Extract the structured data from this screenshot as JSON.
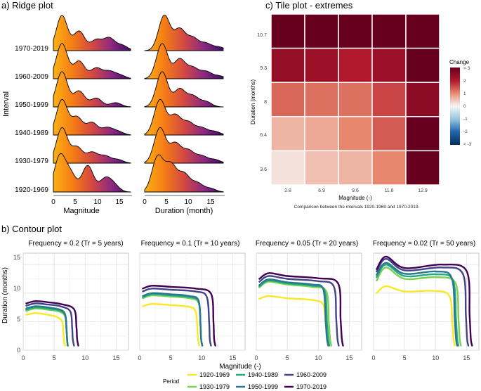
{
  "ridge": {
    "panel_title": "a) Ridge plot",
    "ylabel": "Interval",
    "intervals": [
      "1970-2019",
      "1960-2009",
      "1950-1999",
      "1940-1989",
      "1930-1979",
      "1920-1969"
    ],
    "left": {
      "xlabel": "Magnitude",
      "xticks": [
        "0",
        "5",
        "10",
        "15"
      ]
    },
    "right": {
      "xlabel": "Duration (month)",
      "xticks": [
        "0",
        "5",
        "10",
        "15"
      ]
    }
  },
  "tile": {
    "panel_title": "c) Tile plot - extremes",
    "xlabel": "Magnitude (-)",
    "ylabel": "Duration (months)",
    "xticks": [
      "2.8",
      "6.9",
      "9.6",
      "11.6",
      "12.9"
    ],
    "yticks": [
      "10.7",
      "9.3",
      "8",
      "6.4",
      "3.6"
    ],
    "caption": "Comparison between the intervals 1920-1969 and 1970-2019.",
    "legend_title": "Change",
    "legend_ticks": [
      "> 3",
      "2",
      "1",
      "0",
      "-1",
      "-2",
      "< -3"
    ]
  },
  "contour": {
    "panel_title": "b) Contour plot",
    "xlabel": "Magnitude (-)",
    "ylabel": "Duration (months)",
    "xticks": [
      "0",
      "5",
      "10",
      "15"
    ],
    "yticks": [
      "0",
      "5",
      "10",
      "15"
    ],
    "legend_title": "Period",
    "periods": [
      {
        "label": "1920-1969",
        "color": "#fde725"
      },
      {
        "label": "1930-1979",
        "color": "#7ad151"
      },
      {
        "label": "1940-1989",
        "color": "#22a884"
      },
      {
        "label": "1950-1999",
        "color": "#2a788e"
      },
      {
        "label": "1960-2009",
        "color": "#414487"
      },
      {
        "label": "1970-2019",
        "color": "#440154"
      }
    ]
  },
  "chart_data": [
    {
      "type": "area",
      "title": "a) Ridge plot - Magnitude",
      "xlabel": "Magnitude",
      "ylabel": "Interval",
      "xlim": [
        0,
        18
      ],
      "series": [
        {
          "name": "1920-1969",
          "peaks": [
            [
              1.5,
              1.0
            ],
            [
              4.0,
              0.5
            ],
            [
              8.0,
              0.75
            ],
            [
              12.0,
              0.35
            ],
            [
              14.0,
              0.2
            ]
          ]
        },
        {
          "name": "1930-1979",
          "peaks": [
            [
              2.0,
              1.0
            ],
            [
              5.5,
              0.45
            ],
            [
              9.0,
              0.3
            ],
            [
              12.0,
              0.2
            ],
            [
              15.0,
              0.1
            ]
          ]
        },
        {
          "name": "1940-1989",
          "peaks": [
            [
              2.0,
              1.0
            ],
            [
              5.5,
              0.5
            ],
            [
              9.0,
              0.35
            ],
            [
              12.5,
              0.2
            ],
            [
              15.0,
              0.1
            ]
          ]
        },
        {
          "name": "1950-1999",
          "peaks": [
            [
              2.0,
              1.0
            ],
            [
              6.0,
              0.45
            ],
            [
              10.0,
              0.25
            ],
            [
              14.5,
              0.12
            ]
          ]
        },
        {
          "name": "1960-2009",
          "peaks": [
            [
              2.0,
              1.0
            ],
            [
              6.0,
              0.5
            ],
            [
              10.0,
              0.3
            ],
            [
              13.0,
              0.2
            ],
            [
              15.5,
              0.1
            ]
          ]
        },
        {
          "name": "1970-2019",
          "peaks": [
            [
              2.0,
              1.0
            ],
            [
              6.0,
              0.55
            ],
            [
              10.0,
              0.3
            ],
            [
              13.0,
              0.35
            ],
            [
              16.0,
              0.15
            ]
          ]
        }
      ]
    },
    {
      "type": "area",
      "title": "a) Ridge plot - Duration",
      "xlabel": "Duration (month)",
      "ylabel": "Interval",
      "xlim": [
        0,
        18
      ],
      "series": [
        {
          "name": "1920-1969",
          "peaks": [
            [
              3.0,
              1.0
            ],
            [
              6.0,
              0.75
            ],
            [
              9.0,
              0.5
            ],
            [
              12.0,
              0.25
            ],
            [
              15.0,
              0.1
            ]
          ]
        },
        {
          "name": "1930-1979",
          "peaks": [
            [
              3.5,
              1.0
            ],
            [
              7.0,
              0.55
            ],
            [
              10.0,
              0.35
            ],
            [
              13.0,
              0.2
            ],
            [
              16.0,
              0.1
            ]
          ]
        },
        {
          "name": "1940-1989",
          "peaks": [
            [
              3.5,
              1.0
            ],
            [
              7.0,
              0.55
            ],
            [
              10.0,
              0.35
            ],
            [
              13.0,
              0.2
            ],
            [
              16.0,
              0.1
            ]
          ]
        },
        {
          "name": "1950-1999",
          "peaks": [
            [
              4.0,
              1.0
            ],
            [
              8.0,
              0.5
            ],
            [
              11.0,
              0.3
            ],
            [
              14.0,
              0.15
            ]
          ]
        },
        {
          "name": "1960-2009",
          "peaks": [
            [
              4.0,
              1.0
            ],
            [
              8.0,
              0.55
            ],
            [
              11.0,
              0.3
            ],
            [
              14.0,
              0.2
            ],
            [
              17.0,
              0.08
            ]
          ]
        },
        {
          "name": "1970-2019",
          "peaks": [
            [
              4.5,
              1.0
            ],
            [
              8.0,
              0.6
            ],
            [
              11.0,
              0.35
            ],
            [
              14.0,
              0.2
            ],
            [
              17.0,
              0.1
            ]
          ]
        }
      ]
    },
    {
      "type": "heatmap",
      "title": "c) Tile plot - extremes",
      "xlabel": "Magnitude (-)",
      "ylabel": "Duration (months)",
      "x": [
        "2.8",
        "6.9",
        "9.6",
        "11.6",
        "12.9"
      ],
      "y": [
        "10.7",
        "9.3",
        "8",
        "6.4",
        "3.6"
      ],
      "values": [
        [
          3.0,
          3.0,
          3.0,
          3.0,
          3.0
        ],
        [
          2.4,
          2.3,
          2.0,
          2.3,
          3.0
        ],
        [
          1.3,
          1.2,
          1.2,
          1.6,
          2.5
        ],
        [
          0.6,
          0.7,
          1.0,
          1.4,
          3.0
        ],
        [
          0.2,
          0.5,
          0.6,
          1.0,
          3.0
        ]
      ],
      "zlim": [
        -3,
        3
      ],
      "legend": "Change"
    },
    {
      "type": "line",
      "title": "Frequency = 0.2 (Tr = 5 years)",
      "xlabel": "Magnitude (-)",
      "ylabel": "Duration (months)",
      "xlim": [
        0,
        17
      ],
      "ylim": [
        0,
        17
      ],
      "series": [
        {
          "name": "1920-1969",
          "x": [
            0.5,
            2,
            4,
            5.5,
            6.3,
            6.5,
            6.6,
            6.8
          ],
          "y": [
            6.2,
            6.5,
            6.2,
            5.8,
            5.0,
            3.0,
            1.5,
            0.8
          ]
        },
        {
          "name": "1930-1979",
          "x": [
            0.5,
            2,
            4,
            6,
            6.8,
            7.0,
            7.1,
            7.2
          ],
          "y": [
            6.9,
            7.3,
            7.1,
            6.7,
            5.8,
            3.5,
            1.8,
            0.8
          ]
        },
        {
          "name": "1940-1989",
          "x": [
            0.5,
            2,
            4,
            6,
            6.8,
            7.0,
            7.1,
            7.2
          ],
          "y": [
            7.1,
            7.5,
            7.3,
            6.9,
            6.0,
            3.5,
            1.8,
            0.8
          ]
        },
        {
          "name": "1950-1999",
          "x": [
            0.5,
            2,
            4,
            6,
            6.8,
            7.0,
            7.1,
            7.2
          ],
          "y": [
            7.3,
            7.7,
            7.5,
            7.1,
            6.2,
            3.5,
            1.8,
            0.8
          ]
        },
        {
          "name": "1960-2009",
          "x": [
            0.5,
            2,
            4,
            6,
            7.6,
            7.9,
            8.0,
            8.2
          ],
          "y": [
            7.8,
            8.2,
            8.0,
            7.7,
            6.8,
            4.0,
            2.0,
            0.8
          ]
        },
        {
          "name": "1970-2019",
          "x": [
            0.5,
            2,
            4,
            6,
            8.2,
            8.6,
            8.7,
            8.9
          ],
          "y": [
            8.2,
            8.6,
            8.4,
            8.1,
            7.2,
            4.0,
            2.0,
            0.8
          ]
        }
      ]
    },
    {
      "type": "line",
      "title": "Frequency = 0.1 (Tr = 10 years)",
      "xlabel": "Magnitude (-)",
      "ylabel": "Duration (months)",
      "xlim": [
        0,
        17
      ],
      "ylim": [
        0,
        17
      ],
      "series": [
        {
          "name": "1920-1969",
          "x": [
            0.5,
            2,
            5,
            8,
            9.0,
            9.3,
            9.4,
            9.6
          ],
          "y": [
            7.7,
            8.1,
            7.9,
            7.6,
            6.8,
            4.0,
            2.0,
            0.8
          ]
        },
        {
          "name": "1930-1979",
          "x": [
            0.5,
            2,
            5,
            8,
            9.5,
            9.8,
            9.9,
            10.1
          ],
          "y": [
            9.1,
            9.6,
            9.4,
            9.1,
            8.3,
            4.5,
            2.0,
            0.8
          ]
        },
        {
          "name": "1940-1989",
          "x": [
            0.5,
            2,
            5,
            8,
            9.5,
            9.8,
            9.9,
            10.1
          ],
          "y": [
            9.3,
            9.8,
            9.6,
            9.3,
            8.5,
            4.5,
            2.0,
            0.8
          ]
        },
        {
          "name": "1950-1999",
          "x": [
            0.5,
            2,
            5,
            8,
            9.5,
            9.8,
            9.9,
            10.1
          ],
          "y": [
            9.5,
            10.0,
            9.8,
            9.5,
            8.7,
            4.5,
            2.0,
            0.8
          ]
        },
        {
          "name": "1960-2009",
          "x": [
            0.5,
            2,
            5,
            9,
            10.8,
            11.2,
            11.3,
            11.5
          ],
          "y": [
            10.3,
            10.8,
            10.6,
            10.3,
            9.4,
            5.0,
            2.0,
            0.8
          ]
        },
        {
          "name": "1970-2019",
          "x": [
            0.5,
            2,
            5,
            9,
            11.5,
            11.9,
            12.0,
            12.2
          ],
          "y": [
            10.8,
            11.3,
            11.1,
            10.8,
            9.9,
            5.0,
            2.0,
            0.8
          ]
        }
      ]
    },
    {
      "type": "line",
      "title": "Frequency = 0.05 (Tr = 20 years)",
      "xlabel": "Magnitude (-)",
      "ylabel": "Duration (months)",
      "xlim": [
        0,
        17
      ],
      "ylim": [
        0,
        17
      ],
      "series": [
        {
          "name": "1920-1969",
          "x": [
            0.5,
            2,
            5,
            9,
            10.8,
            11.2,
            11.4,
            11.6
          ],
          "y": [
            9.0,
            9.5,
            9.1,
            8.8,
            8.0,
            4.5,
            2.0,
            0.8
          ]
        },
        {
          "name": "1930-1979",
          "x": [
            0.5,
            2,
            5,
            9,
            11.3,
            11.7,
            11.9,
            12.1
          ],
          "y": [
            11.0,
            12.0,
            11.5,
            11.1,
            10.3,
            5.0,
            2.0,
            0.8
          ]
        },
        {
          "name": "1940-1989",
          "x": [
            0.5,
            2,
            5,
            9,
            11.0,
            11.4,
            11.6,
            11.8
          ],
          "y": [
            11.2,
            12.2,
            11.7,
            11.3,
            10.5,
            5.0,
            2.0,
            0.8
          ]
        },
        {
          "name": "1950-1999",
          "x": [
            0.5,
            2,
            5,
            9,
            10.8,
            11.2,
            11.4,
            11.6
          ],
          "y": [
            11.4,
            12.4,
            11.9,
            11.5,
            10.7,
            5.0,
            2.0,
            0.8
          ]
        },
        {
          "name": "1960-2009",
          "x": [
            0.5,
            2,
            5,
            10,
            12.5,
            12.9,
            13.1,
            13.3
          ],
          "y": [
            12.0,
            13.0,
            12.5,
            12.1,
            11.2,
            5.5,
            2.0,
            0.8
          ]
        },
        {
          "name": "1970-2019",
          "x": [
            0.5,
            2,
            5,
            10,
            13.2,
            13.6,
            13.8,
            14.0
          ],
          "y": [
            12.5,
            13.5,
            13.0,
            12.6,
            11.7,
            5.5,
            2.0,
            0.8
          ]
        }
      ]
    },
    {
      "type": "line",
      "title": "Frequency = 0.02 (Tr = 50 years)",
      "xlabel": "Magnitude (-)",
      "ylabel": "Duration (months)",
      "xlim": [
        0,
        17
      ],
      "ylim": [
        0,
        17
      ],
      "series": [
        {
          "name": "1920-1969",
          "x": [
            0.5,
            2,
            5,
            9.5,
            12.2,
            12.7,
            12.9,
            13.1
          ],
          "y": [
            10.0,
            11.2,
            10.3,
            10.4,
            9.6,
            5.0,
            2.0,
            0.8
          ]
        },
        {
          "name": "1930-1979",
          "x": [
            0.5,
            2,
            5,
            10,
            13.2,
            13.7,
            13.9,
            14.1
          ],
          "y": [
            12.2,
            14.5,
            12.5,
            12.8,
            11.8,
            5.5,
            2.0,
            0.8
          ]
        },
        {
          "name": "1940-1989",
          "x": [
            0.5,
            2,
            5,
            10,
            12.8,
            13.3,
            13.5,
            13.7
          ],
          "y": [
            12.8,
            15.0,
            13.0,
            13.3,
            12.3,
            5.5,
            2.0,
            0.8
          ]
        },
        {
          "name": "1950-1999",
          "x": [
            0.5,
            2,
            5,
            10,
            12.6,
            13.1,
            13.3,
            13.5
          ],
          "y": [
            13.2,
            15.3,
            13.4,
            13.8,
            12.7,
            5.5,
            2.0,
            0.8
          ]
        },
        {
          "name": "1960-2009",
          "x": [
            0.5,
            2,
            5,
            11,
            14.4,
            14.9,
            15.1,
            15.3
          ],
          "y": [
            13.8,
            16.0,
            14.0,
            14.5,
            13.4,
            6.0,
            2.0,
            0.8
          ]
        },
        {
          "name": "1970-2019",
          "x": [
            0.5,
            2,
            5,
            11,
            15.0,
            15.5,
            15.7,
            15.9
          ],
          "y": [
            14.2,
            16.4,
            14.4,
            15.0,
            13.9,
            6.0,
            2.0,
            0.8
          ]
        }
      ]
    }
  ]
}
